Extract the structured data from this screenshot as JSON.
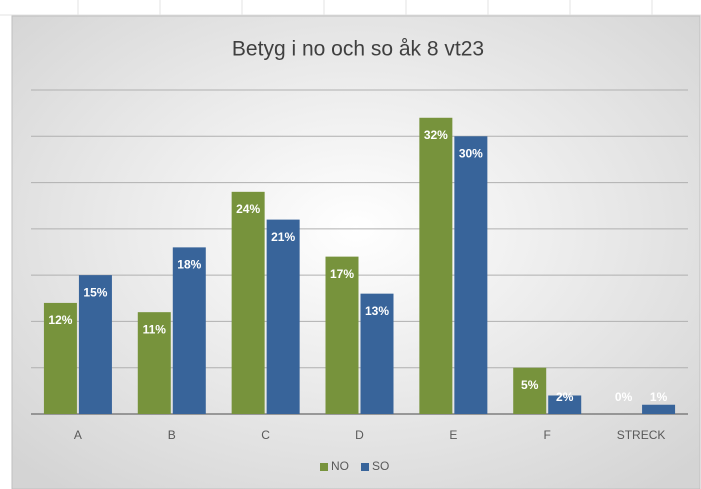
{
  "chart_data": {
    "type": "bar",
    "title": "Betyg i no och so åk 8 vt23",
    "categories": [
      "A",
      "B",
      "C",
      "D",
      "E",
      "F",
      "STRECK"
    ],
    "series": [
      {
        "name": "NO",
        "color": "#77933c",
        "values": [
          12,
          11,
          24,
          17,
          32,
          5,
          0
        ],
        "value_labels": [
          "12%",
          "11%",
          "24%",
          "17%",
          "32%",
          "5%",
          "0%"
        ]
      },
      {
        "name": "SO",
        "color": "#38649a",
        "values": [
          15,
          18,
          21,
          13,
          30,
          2,
          1
        ],
        "value_labels": [
          "15%",
          "18%",
          "21%",
          "13%",
          "30%",
          "2%",
          "1%"
        ]
      }
    ],
    "ylim": [
      0,
      35
    ],
    "yticks": [
      0,
      5,
      10,
      15,
      20,
      25,
      30,
      35
    ],
    "grid": true,
    "legend": "bottom"
  }
}
